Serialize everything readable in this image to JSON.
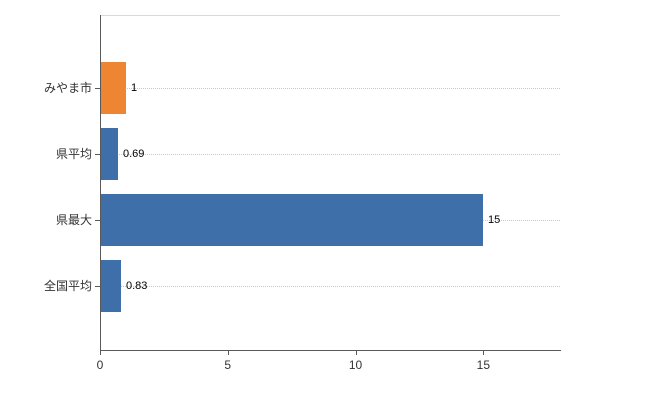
{
  "chart_data": {
    "type": "bar",
    "orientation": "horizontal",
    "title": "",
    "xlabel": "",
    "ylabel": "",
    "categories": [
      "みやま市",
      "県平均",
      "県最大",
      "全国平均"
    ],
    "values": [
      1,
      0.69,
      15,
      0.83
    ],
    "value_labels": [
      "1",
      "0.69",
      "15",
      "0.83"
    ],
    "bar_colors": [
      "#ee8533",
      "#3e6fa8",
      "#3e6fa8",
      "#3e6fa8"
    ],
    "xlim": [
      0,
      18
    ],
    "x_ticks": [
      0,
      5,
      10,
      15
    ],
    "x_tick_labels": [
      "0",
      "5",
      "10",
      "15"
    ],
    "grid": "dotted-horizontal",
    "legend": "none"
  },
  "colors": {
    "highlight_bar": "#ee8533",
    "default_bar": "#3e6fa8",
    "axis": "#595959",
    "gridline": "#c8c8c8",
    "text": "#333333",
    "background": "#ffffff"
  }
}
